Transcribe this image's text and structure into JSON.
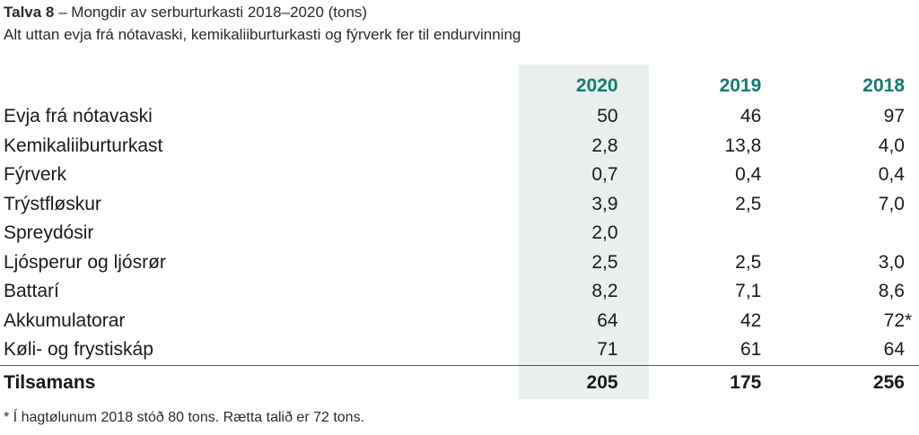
{
  "caption": {
    "label": "Talva 8",
    "rest": " – Mongdir av serburturkasti 2018–2020 (tons)"
  },
  "subtitle": "Alt uttan evja frá nótavaski, kemikaliiburturkasti og fýrverk fer til endurvinning",
  "columns": [
    "2020",
    "2019",
    "2018"
  ],
  "rows": [
    {
      "name": "Evja frá nótavaski",
      "v2020": "50",
      "v2019": "46",
      "v2018": "97",
      "note": ""
    },
    {
      "name": "Kemikaliiburturkast",
      "v2020": "2,8",
      "v2019": "13,8",
      "v2018": "4,0",
      "note": ""
    },
    {
      "name": "Fýrverk",
      "v2020": "0,7",
      "v2019": "0,4",
      "v2018": "0,4",
      "note": ""
    },
    {
      "name": "Trýstfløskur",
      "v2020": "3,9",
      "v2019": "2,5",
      "v2018": "7,0",
      "note": ""
    },
    {
      "name": "Spreydósir",
      "v2020": "2,0",
      "v2019": "",
      "v2018": "",
      "note": ""
    },
    {
      "name": "Ljósperur og ljósrør",
      "v2020": "2,5",
      "v2019": "2,5",
      "v2018": "3,0",
      "note": ""
    },
    {
      "name": "Battarí",
      "v2020": "8,2",
      "v2019": "7,1",
      "v2018": "8,6",
      "note": ""
    },
    {
      "name": "Akkumulatorar",
      "v2020": "64",
      "v2019": "42",
      "v2018": "72",
      "note": "*"
    },
    {
      "name": "Køli- og frystiskáp",
      "v2020": "71",
      "v2019": "61",
      "v2018": "64",
      "note": ""
    }
  ],
  "total": {
    "name": "Tilsamans",
    "v2020": "205",
    "v2019": "175",
    "v2018": "256"
  },
  "footnote": "* Í hagtølunum 2018 stóð 80 tons. Rætta talið er 72 tons.",
  "colors": {
    "accent": "#157a6e",
    "highlight": "#e9f0ef"
  }
}
